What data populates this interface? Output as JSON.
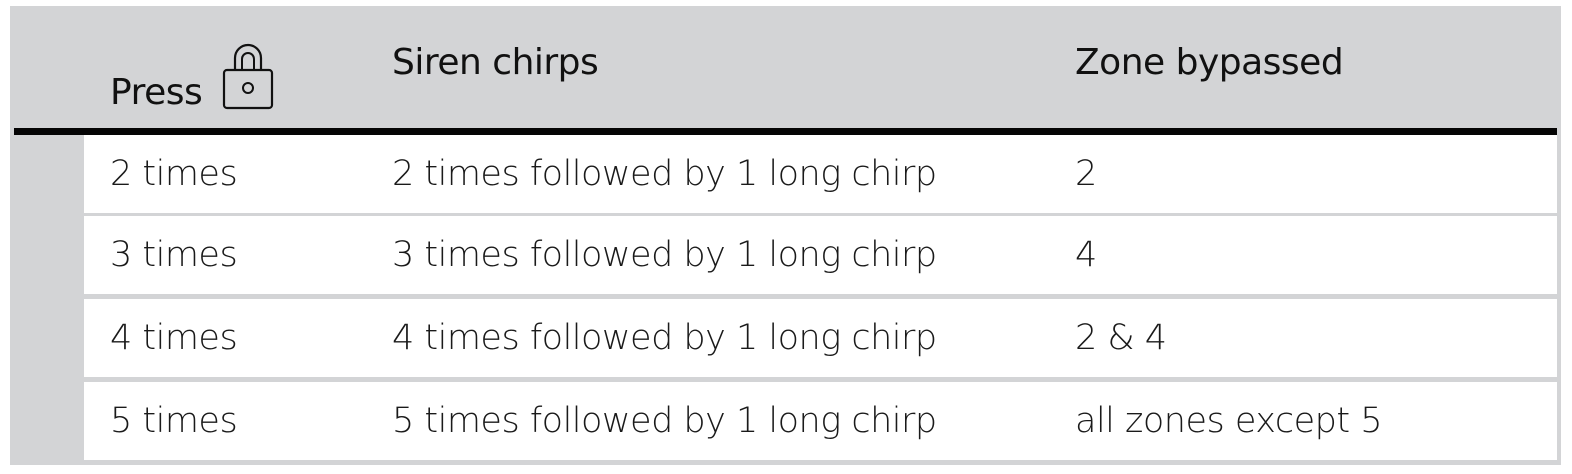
{
  "header": {
    "col1": "Press",
    "col1_icon": "lock-icon",
    "col2": "Siren chirps",
    "col3": "Zone bypassed"
  },
  "rows": [
    {
      "press": "2 times",
      "chirps": "2 times followed by 1 long chirp",
      "zone": "2"
    },
    {
      "press": "3 times",
      "chirps": "3 times followed by 1 long chirp",
      "zone": "4"
    },
    {
      "press": "4 times",
      "chirps": "4 times followed by 1 long chirp",
      "zone": "2 & 4"
    },
    {
      "press": "5 times",
      "chirps": "5 times followed by 1 long chirp",
      "zone": "all zones except 5"
    }
  ]
}
